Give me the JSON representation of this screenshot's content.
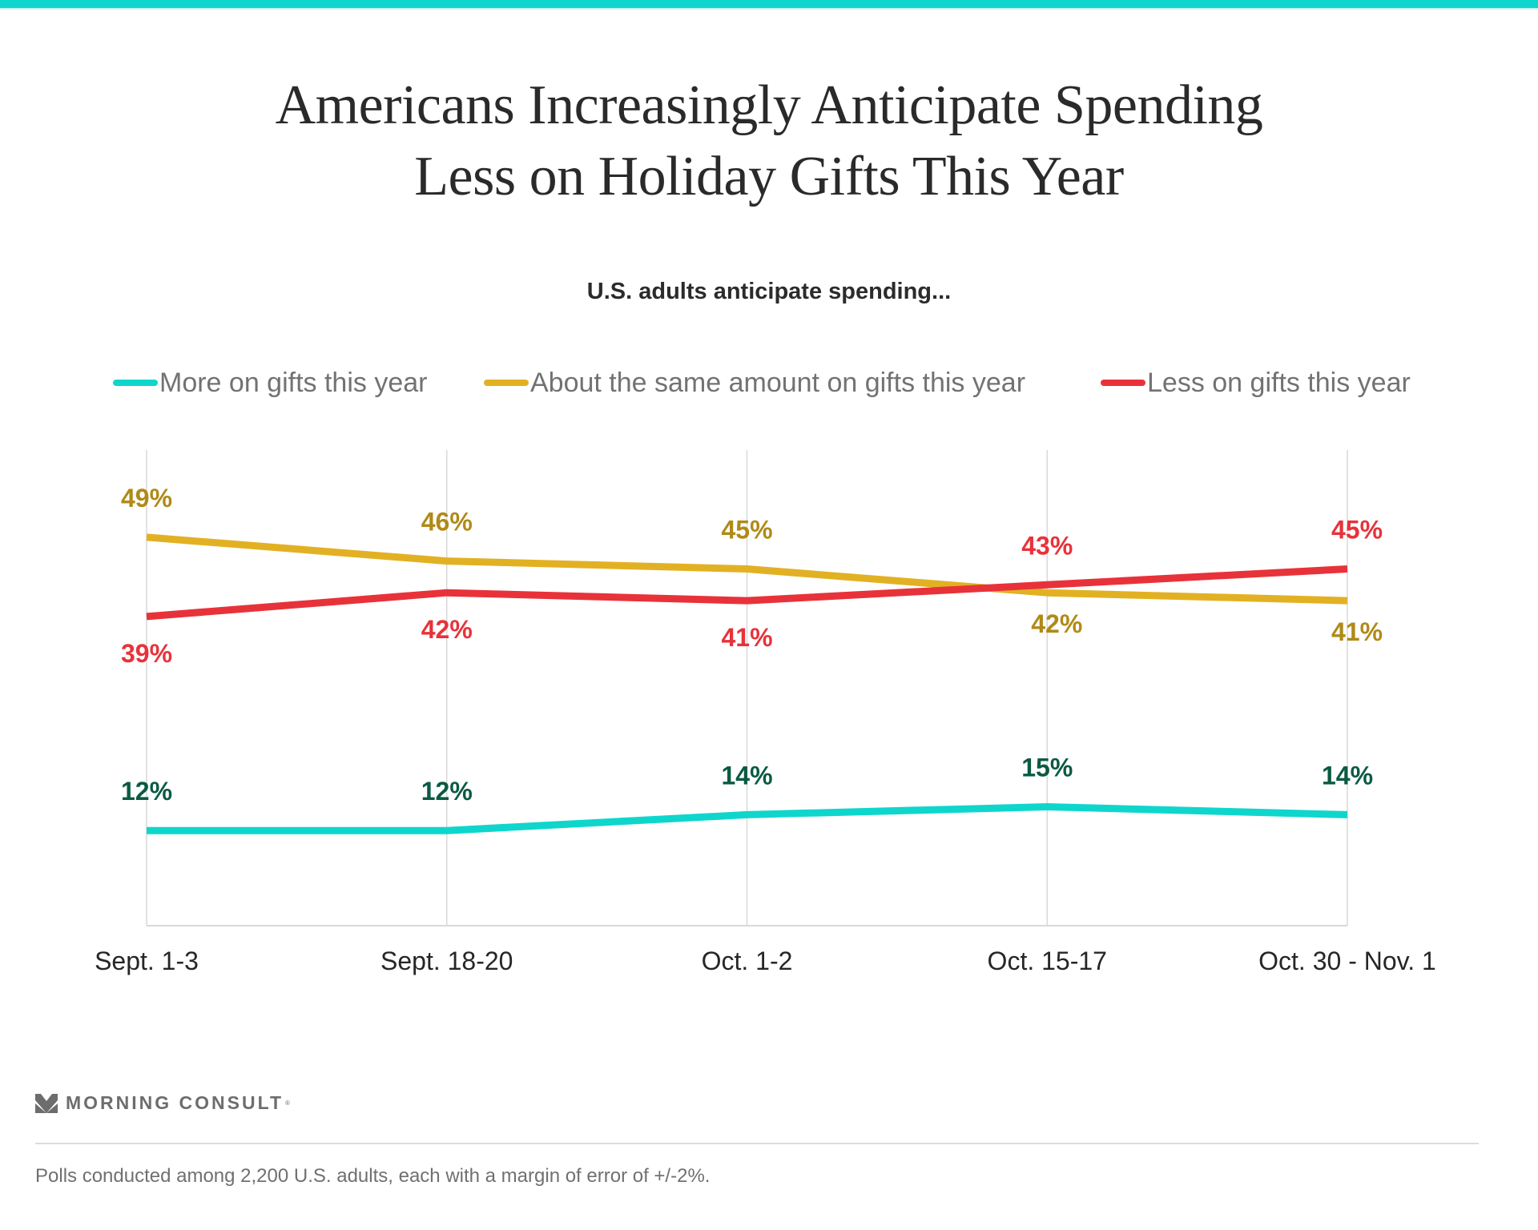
{
  "colors": {
    "brand_bar": "#0fd6cc",
    "more": "#0fd6cc",
    "same": "#e2b123",
    "less": "#e8323a",
    "more_label": "#0b5a43",
    "same_label": "#b08a17",
    "less_label": "#e8323a"
  },
  "header": {
    "title_line1": "Americans Increasingly Anticipate Spending",
    "title_line2": "Less on Holiday Gifts This Year",
    "subtitle": "U.S. adults anticipate spending..."
  },
  "chart_data": {
    "type": "line",
    "title": "Americans Increasingly Anticipate Spending Less on Holiday Gifts This Year",
    "subtitle": "U.S. adults anticipate spending...",
    "xlabel": "",
    "ylabel": "",
    "categories": [
      "Sept. 1-3",
      "Sept. 18-20",
      "Oct. 1-2",
      "Oct. 15-17",
      "Oct. 30 - Nov. 1"
    ],
    "ylim": [
      0,
      60
    ],
    "grid": "vertical",
    "legend_position": "top",
    "series": [
      {
        "key": "more",
        "name": "More on gifts this year",
        "values": [
          12,
          12,
          14,
          15,
          14
        ],
        "labels": [
          "12%",
          "12%",
          "14%",
          "15%",
          "14%"
        ]
      },
      {
        "key": "same",
        "name": "About the same amount on gifts this year",
        "values": [
          49,
          46,
          45,
          42,
          41
        ],
        "labels": [
          "49%",
          "46%",
          "45%",
          "42%",
          "41%"
        ]
      },
      {
        "key": "less",
        "name": "Less on gifts this year",
        "values": [
          39,
          42,
          41,
          43,
          45
        ],
        "labels": [
          "39%",
          "42%",
          "41%",
          "43%",
          "45%"
        ]
      }
    ]
  },
  "footer": {
    "brand": "MORNING CONSULT",
    "brand_mark": "®",
    "logo_icon": "morning-consult-m-icon",
    "note": "Polls conducted among 2,200 U.S. adults, each with a margin of error of +/-2%."
  }
}
